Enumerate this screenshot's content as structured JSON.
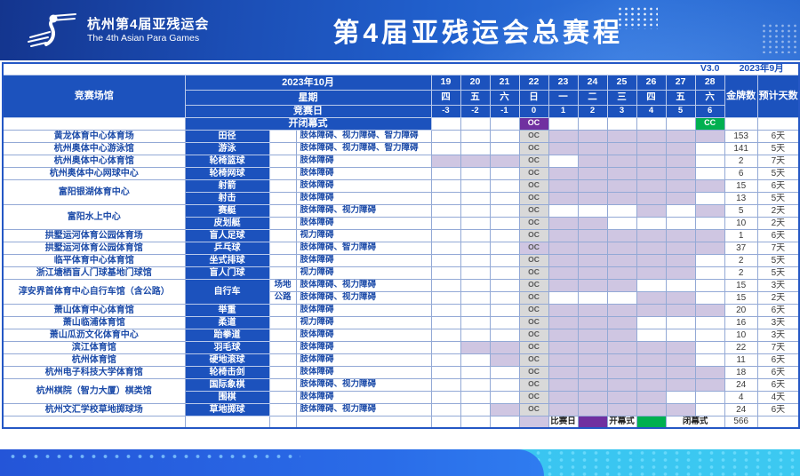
{
  "banner": {
    "logo_title": "杭州第4届亚残运会",
    "logo_subtitle": "The 4th Asian Para Games",
    "title": "第4届亚残运会总赛程"
  },
  "meta": {
    "version": "V3.0",
    "issued": "2023年9月"
  },
  "header": {
    "venue_label": "竞赛场馆",
    "month_label": "2023年10月",
    "week_label": "星期",
    "compday_label": "竞赛日",
    "ceremony_label": "开闭幕式",
    "gold_label": "金牌数",
    "days_label": "预计天数",
    "dates": [
      "19",
      "20",
      "21",
      "22",
      "23",
      "24",
      "25",
      "26",
      "27",
      "28"
    ],
    "weekdays": [
      "四",
      "五",
      "六",
      "日",
      "一",
      "二",
      "三",
      "四",
      "五",
      "六"
    ],
    "comp_days": [
      "-3",
      "-2",
      "-1",
      "0",
      "1",
      "2",
      "3",
      "4",
      "5",
      "6"
    ],
    "oc_label": "OC",
    "cc_label": "CC",
    "oc_date": "22",
    "cc_date": "28"
  },
  "rows": [
    {
      "venue": "黄龙体育中心体育场",
      "venue_span": 1,
      "sport": "田径",
      "sport_span": 1,
      "sub": "",
      "disabilities": "肢体障碍、视力障碍、智力障碍",
      "days": [
        "23",
        "24",
        "25",
        "26",
        "27",
        "28"
      ],
      "gold": "153",
      "est_days": "6天"
    },
    {
      "venue": "杭州奥体中心游泳馆",
      "venue_span": 1,
      "sport": "游泳",
      "sport_span": 1,
      "sub": "",
      "disabilities": "肢体障碍、视力障碍、智力障碍",
      "days": [
        "23",
        "24",
        "25",
        "26",
        "27"
      ],
      "gold": "141",
      "est_days": "5天"
    },
    {
      "venue": "杭州奥体中心体育馆",
      "venue_span": 1,
      "sport": "轮椅篮球",
      "sport_span": 1,
      "sub": "",
      "disabilities": "肢体障碍",
      "days": [
        "19",
        "20",
        "21",
        "24",
        "25",
        "26",
        "27"
      ],
      "gold": "2",
      "est_days": "7天"
    },
    {
      "venue": "杭州奥体中心网球中心",
      "venue_span": 1,
      "sport": "轮椅网球",
      "sport_span": 1,
      "sub": "",
      "disabilities": "肢体障碍",
      "days": [
        "23",
        "24",
        "25",
        "26",
        "27"
      ],
      "gold": "6",
      "est_days": "5天"
    },
    {
      "venue": "富阳银湖体育中心",
      "venue_span": 2,
      "sport": "射箭",
      "sport_span": 1,
      "sub": "",
      "disabilities": "肢体障碍",
      "days": [
        "23",
        "24",
        "25",
        "26",
        "27",
        "28"
      ],
      "gold": "15",
      "est_days": "6天"
    },
    {
      "venue": "",
      "venue_span": 0,
      "sport": "射击",
      "sport_span": 1,
      "sub": "",
      "disabilities": "肢体障碍",
      "days": [
        "23",
        "24",
        "25",
        "26",
        "27"
      ],
      "gold": "13",
      "est_days": "5天"
    },
    {
      "venue": "富阳水上中心",
      "venue_span": 2,
      "sport": "赛艇",
      "sport_span": 1,
      "sub": "",
      "disabilities": "肢体障碍、视力障碍",
      "days": [
        "26",
        "28"
      ],
      "gold": "5",
      "est_days": "2天"
    },
    {
      "venue": "",
      "venue_span": 0,
      "sport": "皮划艇",
      "sport_span": 1,
      "sub": "",
      "disabilities": "肢体障碍",
      "days": [
        "23",
        "24"
      ],
      "gold": "10",
      "est_days": "2天"
    },
    {
      "venue": "拱墅运河体育公园体育场",
      "venue_span": 1,
      "sport": "盲人足球",
      "sport_span": 1,
      "sub": "",
      "disabilities": "视力障碍",
      "days": [
        "23",
        "24",
        "25",
        "26",
        "27",
        "28"
      ],
      "gold": "1",
      "est_days": "6天"
    },
    {
      "venue": "拱墅运河体育公园体育馆",
      "venue_span": 1,
      "sport": "乒乓球",
      "sport_span": 1,
      "sub": "",
      "disabilities": "肢体障碍、智力障碍",
      "days": [
        "22",
        "23",
        "24",
        "25",
        "26",
        "27",
        "28"
      ],
      "gold": "37",
      "est_days": "7天"
    },
    {
      "venue": "临平体育中心体育馆",
      "venue_span": 1,
      "sport": "坐式排球",
      "sport_span": 1,
      "sub": "",
      "disabilities": "肢体障碍",
      "days": [
        "23",
        "24",
        "25",
        "26",
        "27"
      ],
      "gold": "2",
      "est_days": "5天"
    },
    {
      "venue": "浙江塘栖盲人门球基地门球馆",
      "venue_span": 1,
      "sport": "盲人门球",
      "sport_span": 1,
      "sub": "",
      "disabilities": "视力障碍",
      "days": [
        "23",
        "24",
        "25",
        "26",
        "27"
      ],
      "gold": "2",
      "est_days": "5天"
    },
    {
      "venue": "淳安界首体育中心自行车馆（含公路）",
      "venue_span": 2,
      "sport": "自行车",
      "sport_span": 2,
      "sub": "场地",
      "disabilities": "肢体障碍、视力障碍",
      "days": [
        "23",
        "24",
        "25"
      ],
      "gold": "15",
      "est_days": "3天"
    },
    {
      "venue": "",
      "venue_span": 0,
      "sport": "",
      "sport_span": 0,
      "sub": "公路",
      "disabilities": "肢体障碍、视力障碍",
      "days": [
        "26",
        "27"
      ],
      "gold": "15",
      "est_days": "2天"
    },
    {
      "venue": "萧山体育中心体育馆",
      "venue_span": 1,
      "sport": "举重",
      "sport_span": 1,
      "sub": "",
      "disabilities": "肢体障碍",
      "days": [
        "23",
        "24",
        "25",
        "26",
        "27",
        "28"
      ],
      "gold": "20",
      "est_days": "6天"
    },
    {
      "venue": "萧山临浦体育馆",
      "venue_span": 1,
      "sport": "柔道",
      "sport_span": 1,
      "sub": "",
      "disabilities": "视力障碍",
      "days": [
        "23",
        "24",
        "25"
      ],
      "gold": "16",
      "est_days": "3天"
    },
    {
      "venue": "萧山瓜沥文化体育中心",
      "venue_span": 1,
      "sport": "跆拳道",
      "sport_span": 1,
      "sub": "",
      "disabilities": "肢体障碍",
      "days": [
        "23",
        "24",
        "25"
      ],
      "gold": "10",
      "est_days": "3天"
    },
    {
      "venue": "滨江体育馆",
      "venue_span": 1,
      "sport": "羽毛球",
      "sport_span": 1,
      "sub": "",
      "disabilities": "肢体障碍",
      "days": [
        "20",
        "21",
        "23",
        "24",
        "25",
        "26",
        "27"
      ],
      "gold": "22",
      "est_days": "7天"
    },
    {
      "venue": "杭州体育馆",
      "venue_span": 1,
      "sport": "硬地滚球",
      "sport_span": 1,
      "sub": "",
      "disabilities": "肢体障碍",
      "days": [
        "21",
        "23",
        "24",
        "25",
        "26",
        "27"
      ],
      "gold": "11",
      "est_days": "6天"
    },
    {
      "venue": "杭州电子科技大学体育馆",
      "venue_span": 1,
      "sport": "轮椅击剑",
      "sport_span": 1,
      "sub": "",
      "disabilities": "肢体障碍",
      "days": [
        "23",
        "24",
        "25",
        "26",
        "27",
        "28"
      ],
      "gold": "18",
      "est_days": "6天"
    },
    {
      "venue": "杭州棋院（智力大厦）棋类馆",
      "venue_span": 2,
      "sport": "国际象棋",
      "sport_span": 1,
      "sub": "",
      "disabilities": "肢体障碍、视力障碍",
      "days": [
        "23",
        "24",
        "25",
        "26",
        "27",
        "28"
      ],
      "gold": "24",
      "est_days": "6天"
    },
    {
      "venue": "",
      "venue_span": 0,
      "sport": "围棋",
      "sport_span": 1,
      "sub": "",
      "disabilities": "肢体障碍",
      "days": [
        "23",
        "24",
        "25",
        "26"
      ],
      "gold": "4",
      "est_days": "4天"
    },
    {
      "venue": "杭州文汇学校草地掷球场",
      "venue_span": 1,
      "sport": "草地掷球",
      "sport_span": 1,
      "sub": "",
      "disabilities": "肢体障碍、视力障碍",
      "days": [
        "21",
        "23",
        "24",
        "25",
        "26",
        "27"
      ],
      "gold": "24",
      "est_days": "6天"
    }
  ],
  "legend": {
    "competition_label": "比赛日",
    "opening_label": "开幕式",
    "closing_label": "闭幕式",
    "total_gold": "566"
  },
  "colors": {
    "header_blue": "#1c52bd",
    "competition_day_purple": "#cfc6e2",
    "oc_cell_gray": "#d9d9d9",
    "opening_purple": "#7030a0",
    "closing_green": "#00b050",
    "band_blue": "#2a6ce8",
    "band_cyan": "#3cc9f1"
  }
}
